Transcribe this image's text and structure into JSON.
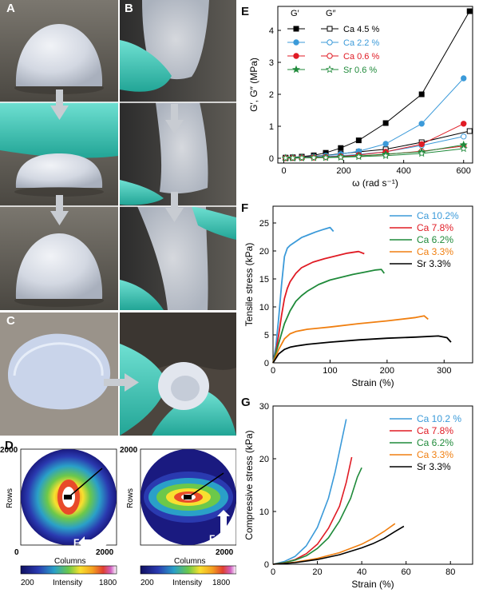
{
  "panels": {
    "A": "A",
    "B": "B",
    "C": "C",
    "D": "D",
    "E": "E",
    "F": "F",
    "G": "G"
  },
  "colors": {
    "ca45": "#000000",
    "ca22": "#3b9ad9",
    "ca06": "#e01b24",
    "sr06": "#1f8a3a",
    "ca102": "#3b9ad9",
    "ca78": "#e01b24",
    "ca62": "#1f8a3a",
    "ca33": "#f07f10",
    "sr33": "#000000",
    "glove": "#3fc9b8",
    "gel": "#d8dde6"
  },
  "panel_d": {
    "rows_label": "Rows",
    "columns_label": "Columns",
    "intensity_label": "Intensity",
    "tick_2000": "2000",
    "tick_0": "0",
    "cbar_min": "200",
    "cbar_max": "1800",
    "force_label": "F"
  },
  "chart_data": [
    {
      "id": "E",
      "type": "scatter",
      "xlabel": "ω (rad s⁻¹)",
      "ylabel": "G′, G″ (MPa)",
      "xlim": [
        -20,
        630
      ],
      "ylim": [
        -0.15,
        4.75
      ],
      "xticks": [
        0,
        200,
        400,
        600
      ],
      "yticks": [
        0,
        1,
        2,
        3,
        4
      ],
      "legend_headers": [
        "G′",
        "G″"
      ],
      "series": [
        {
          "name": "Ca 4.5 %",
          "marker": "square",
          "x": [
            6,
            30,
            60,
            100,
            140,
            190,
            250,
            340,
            460,
            620
          ],
          "g_prime": [
            0.02,
            0.03,
            0.05,
            0.09,
            0.17,
            0.32,
            0.56,
            1.1,
            2.0,
            4.6
          ],
          "g_double_prime": [
            0.01,
            0.02,
            0.04,
            0.06,
            0.09,
            0.14,
            0.2,
            0.28,
            0.5,
            0.85
          ]
        },
        {
          "name": "Ca 2.2 %",
          "marker": "circle",
          "x": [
            6,
            30,
            60,
            100,
            140,
            190,
            250,
            340,
            460,
            600
          ],
          "g_prime": [
            0.01,
            0.02,
            0.03,
            0.05,
            0.08,
            0.13,
            0.22,
            0.45,
            1.08,
            2.5
          ],
          "g_double_prime": [
            0.01,
            0.01,
            0.02,
            0.03,
            0.05,
            0.08,
            0.12,
            0.2,
            0.4,
            0.68
          ]
        },
        {
          "name": "Ca 0.6 %",
          "marker": "circle",
          "x": [
            6,
            30,
            60,
            100,
            140,
            190,
            250,
            340,
            460,
            600
          ],
          "g_prime": [
            0.005,
            0.01,
            0.02,
            0.03,
            0.04,
            0.06,
            0.1,
            0.2,
            0.44,
            1.08
          ],
          "g_double_prime": [
            0.005,
            0.01,
            0.015,
            0.02,
            0.03,
            0.05,
            0.07,
            0.12,
            0.22,
            0.38
          ]
        },
        {
          "name": "Sr 0.6 %",
          "marker": "star",
          "x": [
            6,
            30,
            60,
            100,
            140,
            190,
            250,
            340,
            460,
            600
          ],
          "g_prime": [
            0.005,
            0.008,
            0.012,
            0.02,
            0.03,
            0.045,
            0.07,
            0.13,
            0.2,
            0.42
          ],
          "g_double_prime": [
            0.004,
            0.006,
            0.01,
            0.015,
            0.02,
            0.03,
            0.05,
            0.08,
            0.15,
            0.3
          ]
        }
      ]
    },
    {
      "id": "F",
      "type": "line",
      "xlabel": "Strain (%)",
      "ylabel": "Tensile stress (kPa)",
      "xlim": [
        0,
        350
      ],
      "ylim": [
        0,
        28
      ],
      "xticks": [
        0,
        100,
        200,
        300
      ],
      "yticks": [
        0,
        5,
        10,
        15,
        20,
        25
      ],
      "series": [
        {
          "name": "Ca 10.2%",
          "x": [
            0,
            5,
            10,
            15,
            20,
            25,
            30,
            40,
            50,
            60,
            75,
            90,
            100,
            106
          ],
          "values": [
            0,
            3,
            8,
            14,
            19,
            20.5,
            21,
            21.7,
            22.4,
            22.8,
            23.4,
            23.9,
            24.2,
            23.5
          ]
        },
        {
          "name": "Ca 7.8%",
          "x": [
            0,
            5,
            10,
            15,
            20,
            25,
            30,
            40,
            50,
            70,
            90,
            110,
            130,
            150,
            160
          ],
          "values": [
            0,
            2,
            5,
            8.5,
            11.5,
            13.3,
            14.5,
            16,
            17,
            18,
            18.6,
            19.1,
            19.6,
            19.9,
            19.5
          ]
        },
        {
          "name": "Ca 6.2%",
          "x": [
            0,
            10,
            20,
            30,
            40,
            50,
            60,
            80,
            100,
            120,
            140,
            160,
            180,
            190,
            195
          ],
          "values": [
            0,
            3.5,
            7,
            9.3,
            11,
            12,
            12.8,
            14,
            14.8,
            15.3,
            15.8,
            16.2,
            16.6,
            16.7,
            16
          ]
        },
        {
          "name": "Ca 3.3%",
          "x": [
            0,
            10,
            20,
            30,
            40,
            60,
            80,
            100,
            150,
            200,
            250,
            265,
            272
          ],
          "values": [
            0,
            2.4,
            4.3,
            5.2,
            5.6,
            6,
            6.2,
            6.4,
            7,
            7.5,
            8.1,
            8.4,
            7.8
          ]
        },
        {
          "name": "Sr 3.3%",
          "x": [
            0,
            10,
            20,
            30,
            40,
            60,
            80,
            100,
            150,
            200,
            250,
            290,
            305,
            312
          ],
          "values": [
            0,
            1.6,
            2.4,
            2.8,
            3,
            3.3,
            3.5,
            3.7,
            4.1,
            4.4,
            4.6,
            4.8,
            4.5,
            3.7
          ]
        }
      ]
    },
    {
      "id": "G",
      "type": "line",
      "xlabel": "Strain (%)",
      "ylabel": "Compressive stress (kPa)",
      "xlim": [
        0,
        90
      ],
      "ylim": [
        0,
        30
      ],
      "xticks": [
        0,
        20,
        40,
        60,
        80
      ],
      "yticks": [
        0,
        10,
        20,
        30
      ],
      "series": [
        {
          "name": "Ca 10.2 %",
          "x": [
            0,
            5,
            10,
            15,
            20,
            25,
            28,
            31,
            33
          ],
          "values": [
            0,
            0.5,
            1.5,
            3.5,
            7,
            12.5,
            17.5,
            23.5,
            27.5
          ]
        },
        {
          "name": "Ca 7.8%",
          "x": [
            0,
            5,
            10,
            15,
            20,
            25,
            30,
            33,
            35.5
          ],
          "values": [
            0,
            0.3,
            0.9,
            2,
            3.8,
            6.8,
            11,
            15.5,
            20.3
          ]
        },
        {
          "name": "Ca 6.2%",
          "x": [
            0,
            5,
            10,
            15,
            20,
            25,
            30,
            35,
            38,
            40
          ],
          "values": [
            0,
            0.3,
            0.8,
            1.6,
            3,
            5,
            8.2,
            12.5,
            16.5,
            18.3
          ]
        },
        {
          "name": "Ca 3.3%",
          "x": [
            0,
            10,
            20,
            30,
            40,
            45,
            50,
            55
          ],
          "values": [
            0,
            0.4,
            1.1,
            2.2,
            3.8,
            4.9,
            6.2,
            7.7
          ]
        },
        {
          "name": "Sr 3.3%",
          "x": [
            0,
            10,
            20,
            30,
            40,
            45,
            50,
            55,
            59
          ],
          "values": [
            0,
            0.3,
            0.9,
            1.8,
            3.1,
            3.9,
            4.9,
            6.2,
            7.2
          ]
        }
      ]
    }
  ]
}
